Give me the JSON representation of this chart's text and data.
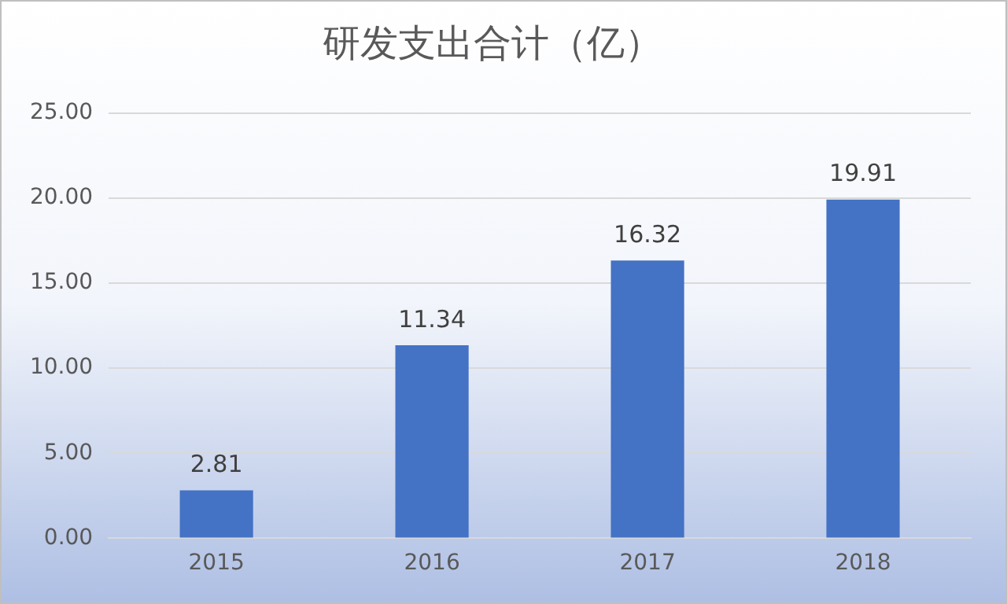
{
  "chart_data": {
    "type": "bar",
    "title": "研发支出合计（亿）",
    "categories": [
      "2015",
      "2016",
      "2017",
      "2018"
    ],
    "values": [
      2.81,
      11.34,
      16.32,
      19.91
    ],
    "color": "#4472c4",
    "ylim": [
      0,
      25
    ],
    "yticks": [
      {
        "value": 0,
        "label": "0.00"
      },
      {
        "value": 5,
        "label": "5.00"
      },
      {
        "value": 10,
        "label": "10.00"
      },
      {
        "value": 15,
        "label": "15.00"
      },
      {
        "value": 20,
        "label": "20.00"
      },
      {
        "value": 25,
        "label": "25.00"
      }
    ],
    "grid": "y",
    "data_labels": true,
    "legend": false
  }
}
